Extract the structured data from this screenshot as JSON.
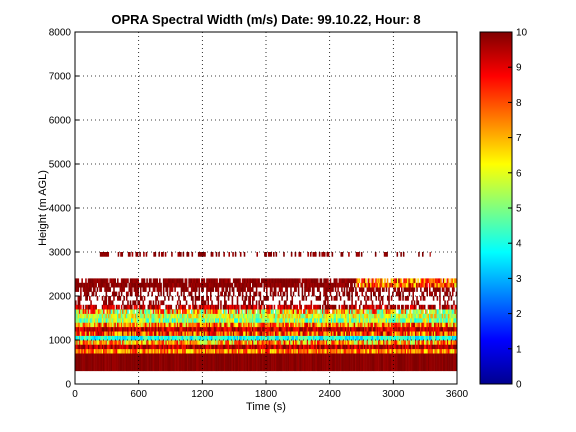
{
  "chart_data": {
    "type": "heatmap",
    "title": "OPRA Spectral Width (m/s)  Date: 99.10.22, Hour: 8",
    "xlabel": "Time (s)",
    "ylabel": "Height (m AGL)",
    "xlim": [
      0,
      3600
    ],
    "ylim": [
      0,
      8000
    ],
    "xticks": [
      "0",
      "600",
      "1200",
      "1800",
      "2400",
      "3000",
      "3600"
    ],
    "yticks": [
      "0",
      "1000",
      "2000",
      "3000",
      "4000",
      "5000",
      "6000",
      "7000",
      "8000"
    ],
    "grid": true,
    "colorbar": {
      "min": 0,
      "max": 10,
      "ticks": [
        "0",
        "1",
        "2",
        "3",
        "4",
        "5",
        "6",
        "7",
        "8",
        "9",
        "10"
      ],
      "colormap": "jet",
      "placement": "right"
    },
    "bands": [
      {
        "y0": 300,
        "y1": 700,
        "x0": 0,
        "x1": 3600,
        "value": 9.9,
        "density": 1.0,
        "jitter": 0.2
      },
      {
        "y0": 700,
        "y1": 800,
        "x0": 0,
        "x1": 3600,
        "value": 7.5,
        "density": 1.0,
        "jitter": 1.5
      },
      {
        "y0": 800,
        "y1": 900,
        "x0": 0,
        "x1": 3600,
        "value": 9.5,
        "density": 1.0,
        "jitter": 1.0
      },
      {
        "y0": 900,
        "y1": 1000,
        "x0": 0,
        "x1": 3600,
        "value": 7.0,
        "density": 1.0,
        "jitter": 2.0
      },
      {
        "y0": 1000,
        "y1": 1100,
        "x0": 0,
        "x1": 3600,
        "value": 4.0,
        "density": 1.0,
        "jitter": 1.0
      },
      {
        "y0": 1100,
        "y1": 1200,
        "x0": 0,
        "x1": 3600,
        "value": 8.0,
        "density": 1.0,
        "jitter": 1.8
      },
      {
        "y0": 1200,
        "y1": 1300,
        "x0": 0,
        "x1": 3600,
        "value": 9.3,
        "density": 1.0,
        "jitter": 1.0
      },
      {
        "y0": 1300,
        "y1": 1400,
        "x0": 0,
        "x1": 3600,
        "value": 7.5,
        "density": 1.0,
        "jitter": 2.0
      },
      {
        "y0": 1400,
        "y1": 1500,
        "x0": 0,
        "x1": 3600,
        "value": 5.2,
        "density": 1.0,
        "jitter": 1.5
      },
      {
        "y0": 1500,
        "y1": 1600,
        "x0": 0,
        "x1": 3600,
        "value": 5.8,
        "density": 1.0,
        "jitter": 1.5
      },
      {
        "y0": 1600,
        "y1": 1700,
        "x0": 0,
        "x1": 3600,
        "value": 6.5,
        "density": 0.9,
        "jitter": 2.5
      },
      {
        "y0": 1700,
        "y1": 1800,
        "x0": 0,
        "x1": 3600,
        "value": 9.5,
        "density": 0.75,
        "jitter": 1.0
      },
      {
        "y0": 1800,
        "y1": 1900,
        "x0": 0,
        "x1": 3600,
        "value": 9.9,
        "density": 0.3,
        "jitter": 0.3
      },
      {
        "y0": 1900,
        "y1": 2000,
        "x0": 0,
        "x1": 3600,
        "value": 9.9,
        "density": 0.35,
        "jitter": 0.3
      },
      {
        "y0": 2000,
        "y1": 2100,
        "x0": 0,
        "x1": 3600,
        "value": 9.9,
        "density": 0.45,
        "jitter": 0.3
      },
      {
        "y0": 2100,
        "y1": 2200,
        "x0": 0,
        "x1": 3600,
        "value": 9.9,
        "density": 0.6,
        "jitter": 0.3
      },
      {
        "y0": 2200,
        "y1": 2300,
        "x0": 0,
        "x1": 2650,
        "value": 9.9,
        "density": 0.95,
        "jitter": 0.3
      },
      {
        "y0": 2200,
        "y1": 2300,
        "x0": 2650,
        "x1": 3600,
        "value": 7.8,
        "density": 0.95,
        "jitter": 2.0
      },
      {
        "y0": 2300,
        "y1": 2400,
        "x0": 0,
        "x1": 2650,
        "value": 9.9,
        "density": 0.85,
        "jitter": 0.3
      },
      {
        "y0": 2300,
        "y1": 2400,
        "x0": 2650,
        "x1": 3600,
        "value": 8.0,
        "density": 0.85,
        "jitter": 2.0
      },
      {
        "y0": 2900,
        "y1": 3000,
        "x0": 150,
        "x1": 3350,
        "value": 9.9,
        "density": 0.3,
        "jitter": 0.3
      }
    ]
  }
}
